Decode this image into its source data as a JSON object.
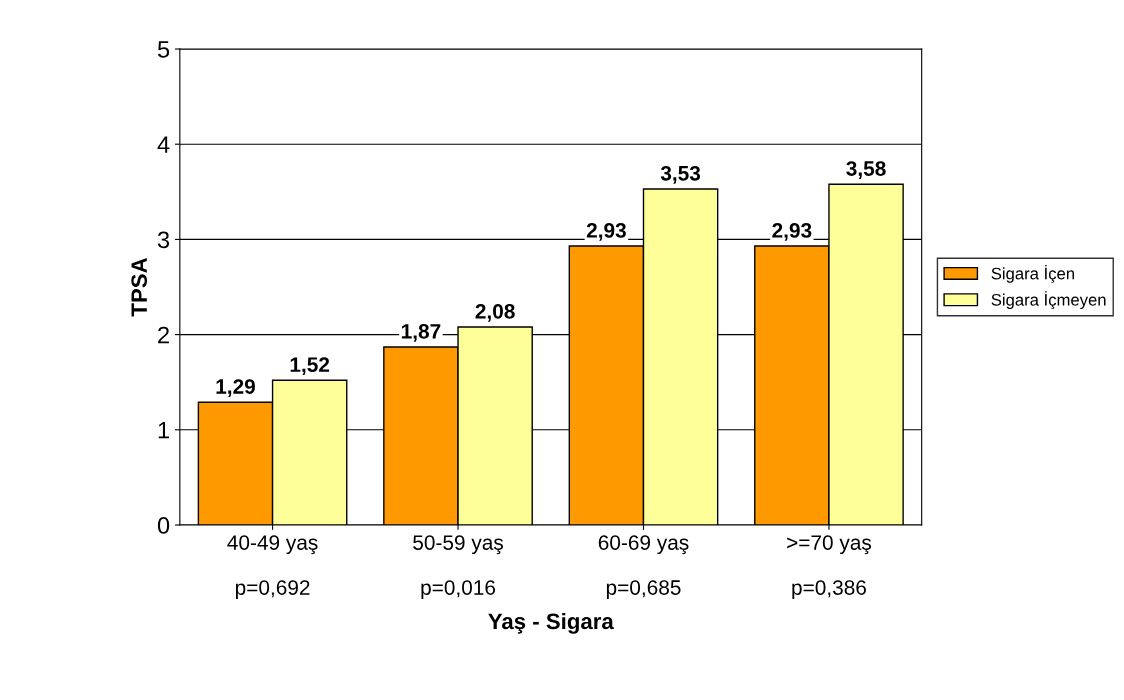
{
  "chart_data": {
    "type": "bar",
    "xlabel": "Yaş - Sigara",
    "ylabel": "TPSA",
    "categories": [
      "40-49 yaş\n\np=0,692",
      "50-59 yaş\n\np=0,016",
      "60-69 yaş\n\np=0,685",
      ">=70 yaş\n\np=0,386"
    ],
    "series": [
      {
        "name": "Sigara İçen",
        "color": "#ff9900",
        "values": [
          1.29,
          1.87,
          2.93,
          2.93
        ],
        "value_labels": [
          "1,29",
          "1,87",
          "2,93",
          "2,93"
        ]
      },
      {
        "name": "Sigara İçmeyen",
        "color": "#ffff99",
        "values": [
          1.52,
          2.08,
          3.53,
          3.58
        ],
        "value_labels": [
          "1,52",
          "2,08",
          "3,53",
          "3,58"
        ]
      }
    ],
    "ylim": [
      0,
      5
    ],
    "yticks": [
      0,
      1,
      2,
      3,
      4,
      5
    ],
    "grid": "y",
    "legend": "right"
  }
}
